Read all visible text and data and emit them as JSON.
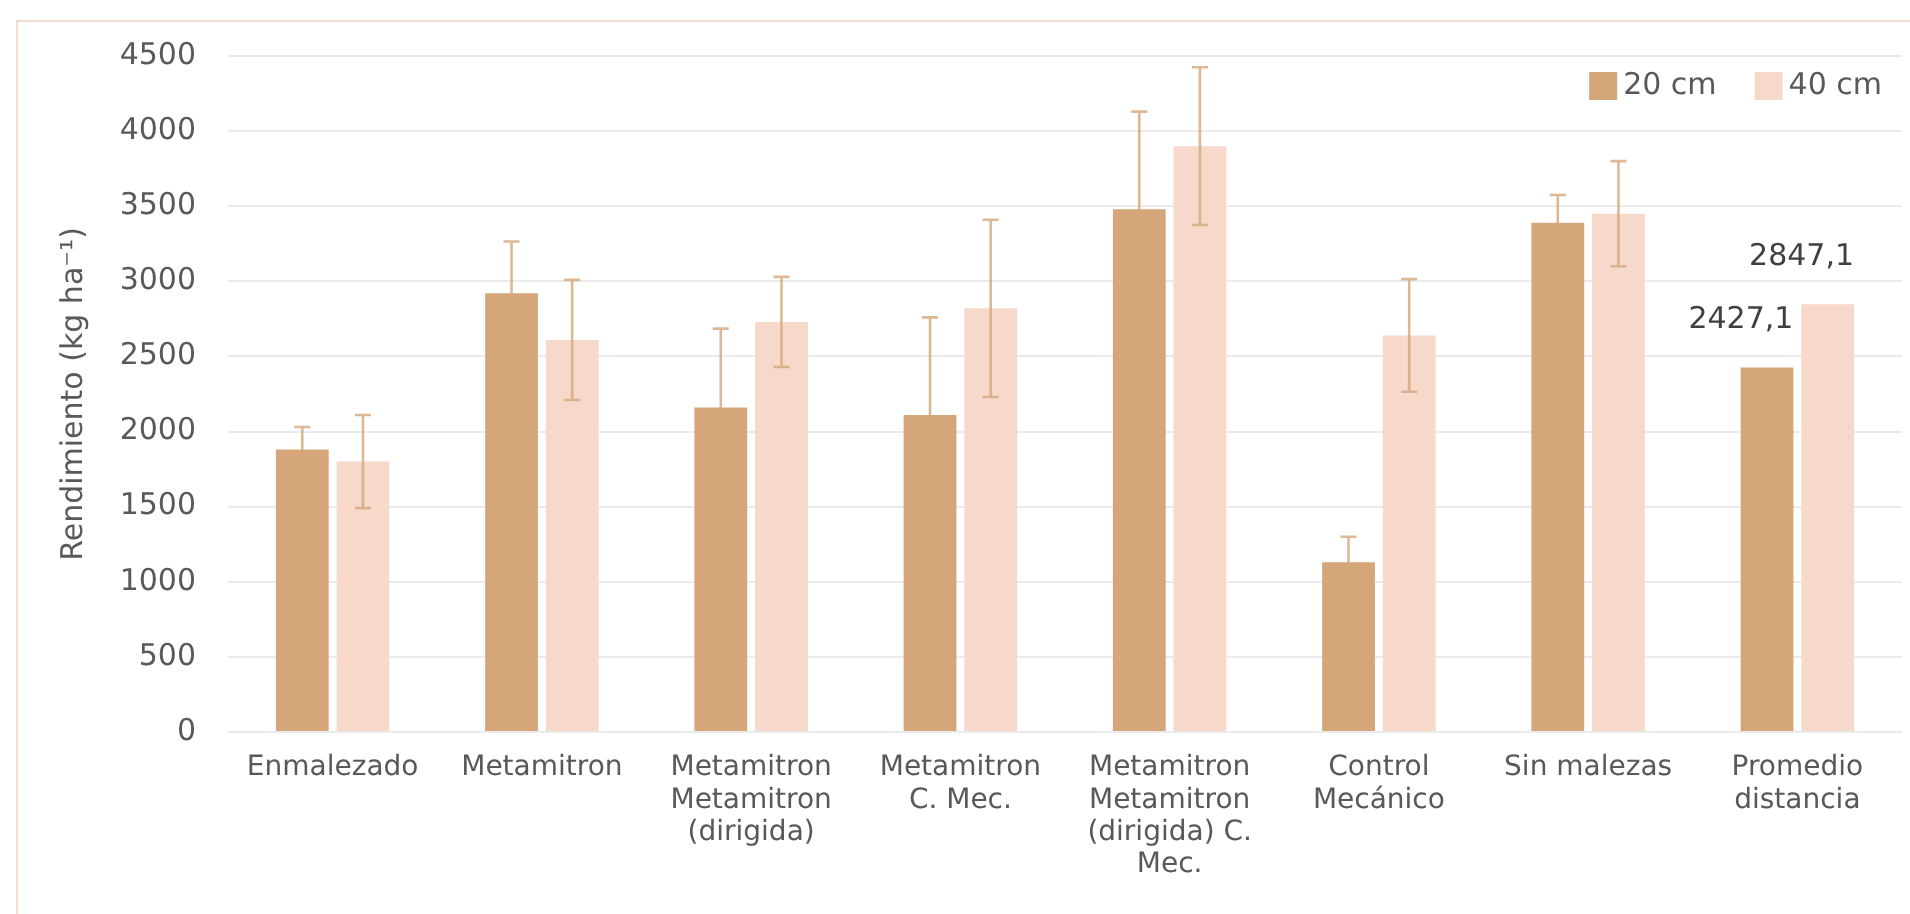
{
  "chart_data": {
    "type": "bar",
    "ylabel": "Rendimiento (kg ha⁻¹)",
    "categories": [
      "Enmalezado",
      "Metamitron",
      "Metamitron Metamitron (dirigida)",
      "Metamitron C. Mec.",
      "Metamitron Metamitron (dirigida) C. Mec.",
      "Control Mecánico",
      "Sin malezas",
      "Promedio distancia"
    ],
    "series": [
      {
        "name": "20 cm",
        "color": "#d5a67a",
        "values": [
          1880,
          2920,
          2160,
          2110,
          3480,
          1130,
          3390,
          2427.1
        ],
        "errors": [
          150,
          345,
          525,
          650,
          650,
          170,
          185,
          null
        ],
        "value_labels": [
          null,
          null,
          null,
          null,
          null,
          null,
          null,
          "2427,1"
        ]
      },
      {
        "name": "40 cm",
        "color": "#f6d9ca",
        "values": [
          1800,
          2610,
          2730,
          2820,
          3900,
          2640,
          3450,
          2847.1
        ],
        "errors": [
          310,
          400,
          300,
          590,
          525,
          375,
          350,
          null
        ],
        "value_labels": [
          null,
          null,
          null,
          null,
          null,
          null,
          null,
          "2847,1"
        ]
      }
    ],
    "ylim": [
      0,
      4500
    ],
    "yticks": [
      0,
      500,
      1000,
      1500,
      2000,
      2500,
      3000,
      3500,
      4000,
      4500
    ],
    "grid": "y",
    "legend": "top right"
  }
}
